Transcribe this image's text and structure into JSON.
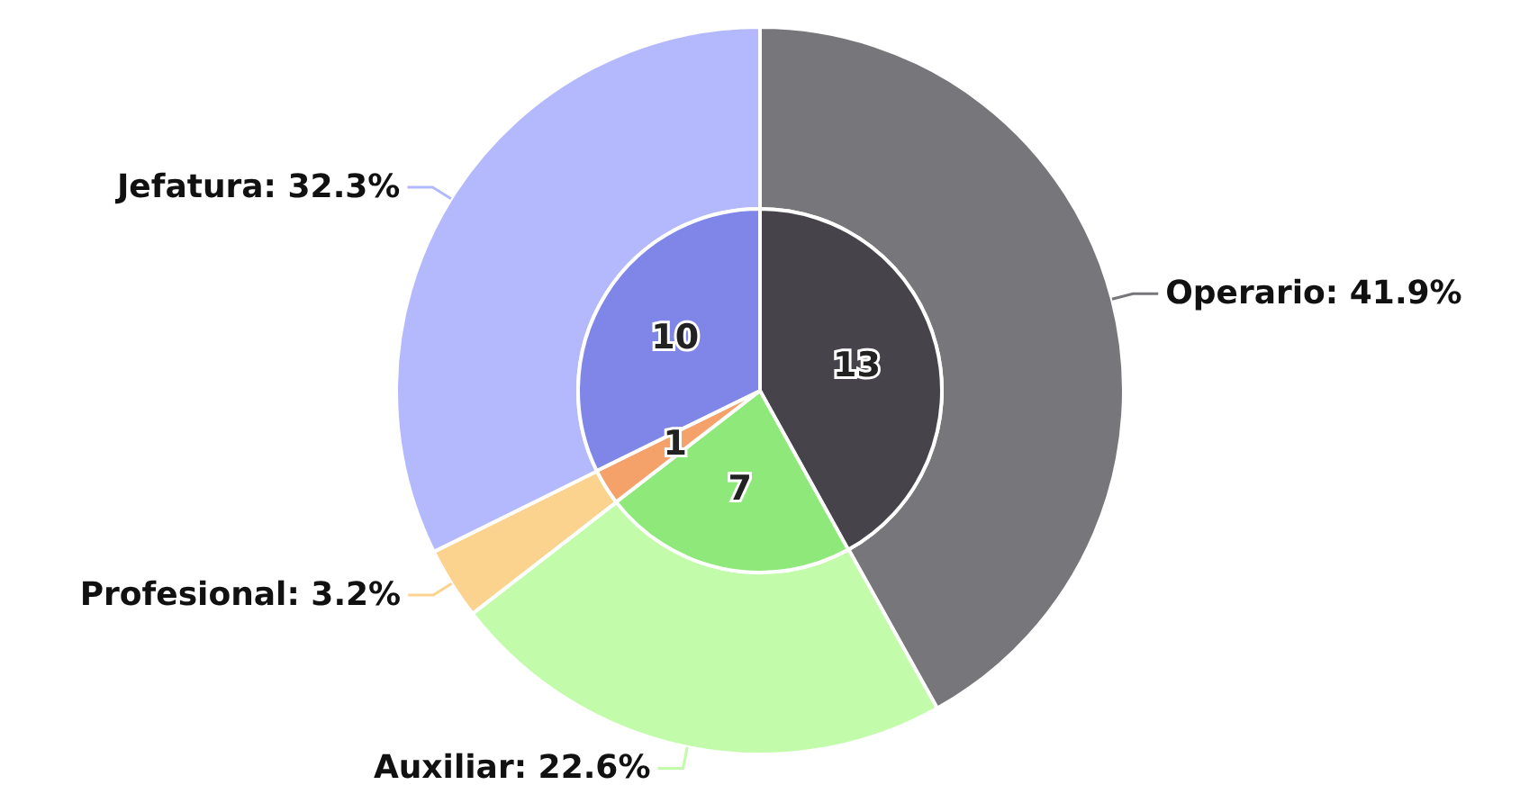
{
  "chart_data": {
    "type": "donut",
    "categories": [
      "Operario",
      "Auxiliar",
      "Profesional",
      "Jefatura"
    ],
    "data_labels": true,
    "legend": false,
    "series": [
      {
        "values": [
          41.9,
          22.6,
          3.2,
          32.3
        ],
        "value_labels": [
          "41.9%",
          "22.6%",
          "3.2%",
          "32.3%"
        ],
        "colors": [
          "#77767b",
          "#c2fbaa",
          "#fbd38e",
          "#b3b9fc"
        ]
      },
      {
        "type": "pie",
        "values": [
          13,
          7,
          1,
          10
        ],
        "colors": [
          "#46444a",
          "#8ee87a",
          "#f5a26a",
          "#7f86e8"
        ]
      }
    ]
  }
}
